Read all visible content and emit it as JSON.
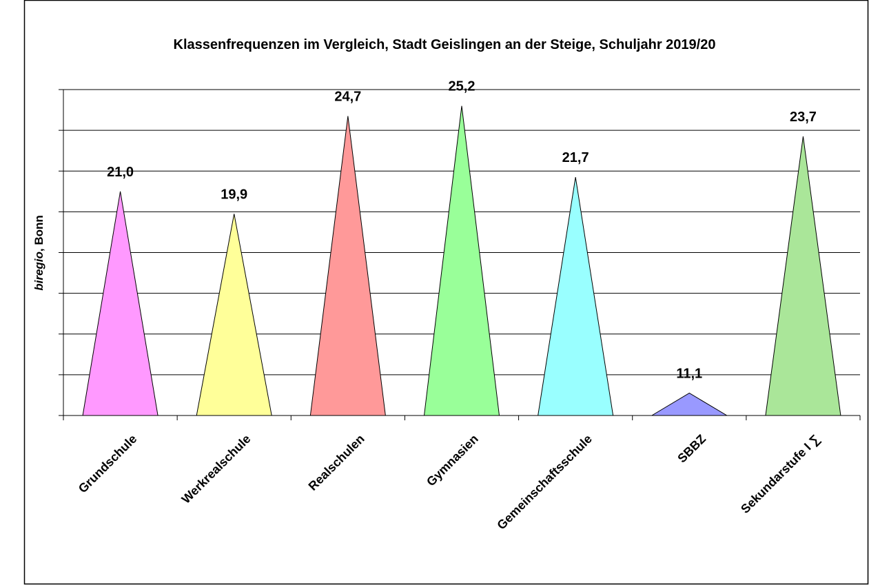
{
  "chart_data": {
    "type": "triangle-bar",
    "title": "Klassenfrequenzen im Vergleich, Stadt Geislingen an der Steige, Schuljahr 2019/20",
    "ylabel": [
      "biregio",
      ", Bonn"
    ],
    "categories": [
      "Grundschule",
      "Werkrealschule",
      "Realschulen",
      "Gymnasien",
      "Gemeinschaftsschule",
      "SBBZ",
      "Sekundarstufe I ∑"
    ],
    "values": [
      21.0,
      19.9,
      24.7,
      25.2,
      21.7,
      11.1,
      23.7
    ],
    "value_labels": [
      "21,0",
      "19,9",
      "24,7",
      "25,2",
      "21,7",
      "11,1",
      "23,7"
    ],
    "colors": [
      "#ff99ff",
      "#ffff99",
      "#ff9999",
      "#99ff99",
      "#99ffff",
      "#9999ff",
      "#aae699"
    ],
    "ylim": [
      10,
      26
    ],
    "yticks": [
      10,
      12,
      14,
      16,
      18,
      20,
      22,
      24,
      26
    ],
    "grid": true
  }
}
